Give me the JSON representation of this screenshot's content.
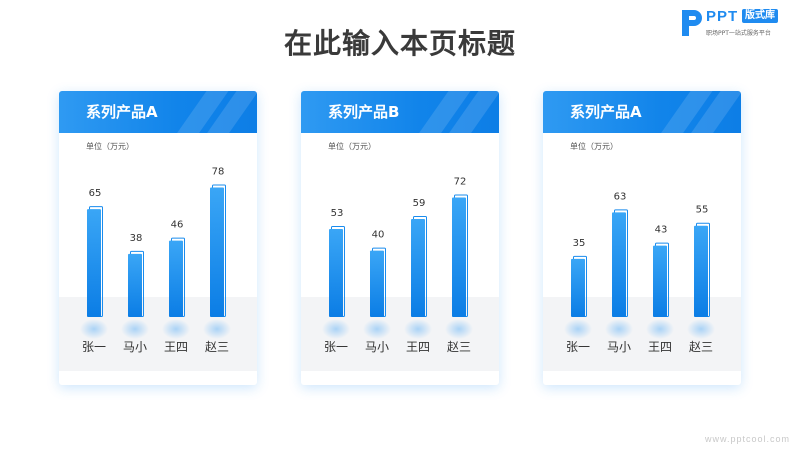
{
  "page": {
    "title": "在此输入本页标题",
    "watermark": "www.pptcool.com"
  },
  "logo": {
    "brand": "PPT",
    "badge": "版式库",
    "tagline": "职场PPT一站式服务平台"
  },
  "chart_data": [
    {
      "type": "bar",
      "title": "系列产品A",
      "unit_label": "单位（万元）",
      "categories": [
        "张一",
        "马小",
        "王四",
        "赵三"
      ],
      "values": [
        65,
        38,
        46,
        78
      ]
    },
    {
      "type": "bar",
      "title": "系列产品B",
      "unit_label": "单位（万元）",
      "categories": [
        "张一",
        "马小",
        "王四",
        "赵三"
      ],
      "values": [
        53,
        40,
        59,
        72
      ]
    },
    {
      "type": "bar",
      "title": "系列产品A",
      "unit_label": "单位（万元）",
      "categories": [
        "张一",
        "马小",
        "王四",
        "赵三"
      ],
      "values": [
        35,
        63,
        43,
        55
      ]
    }
  ]
}
